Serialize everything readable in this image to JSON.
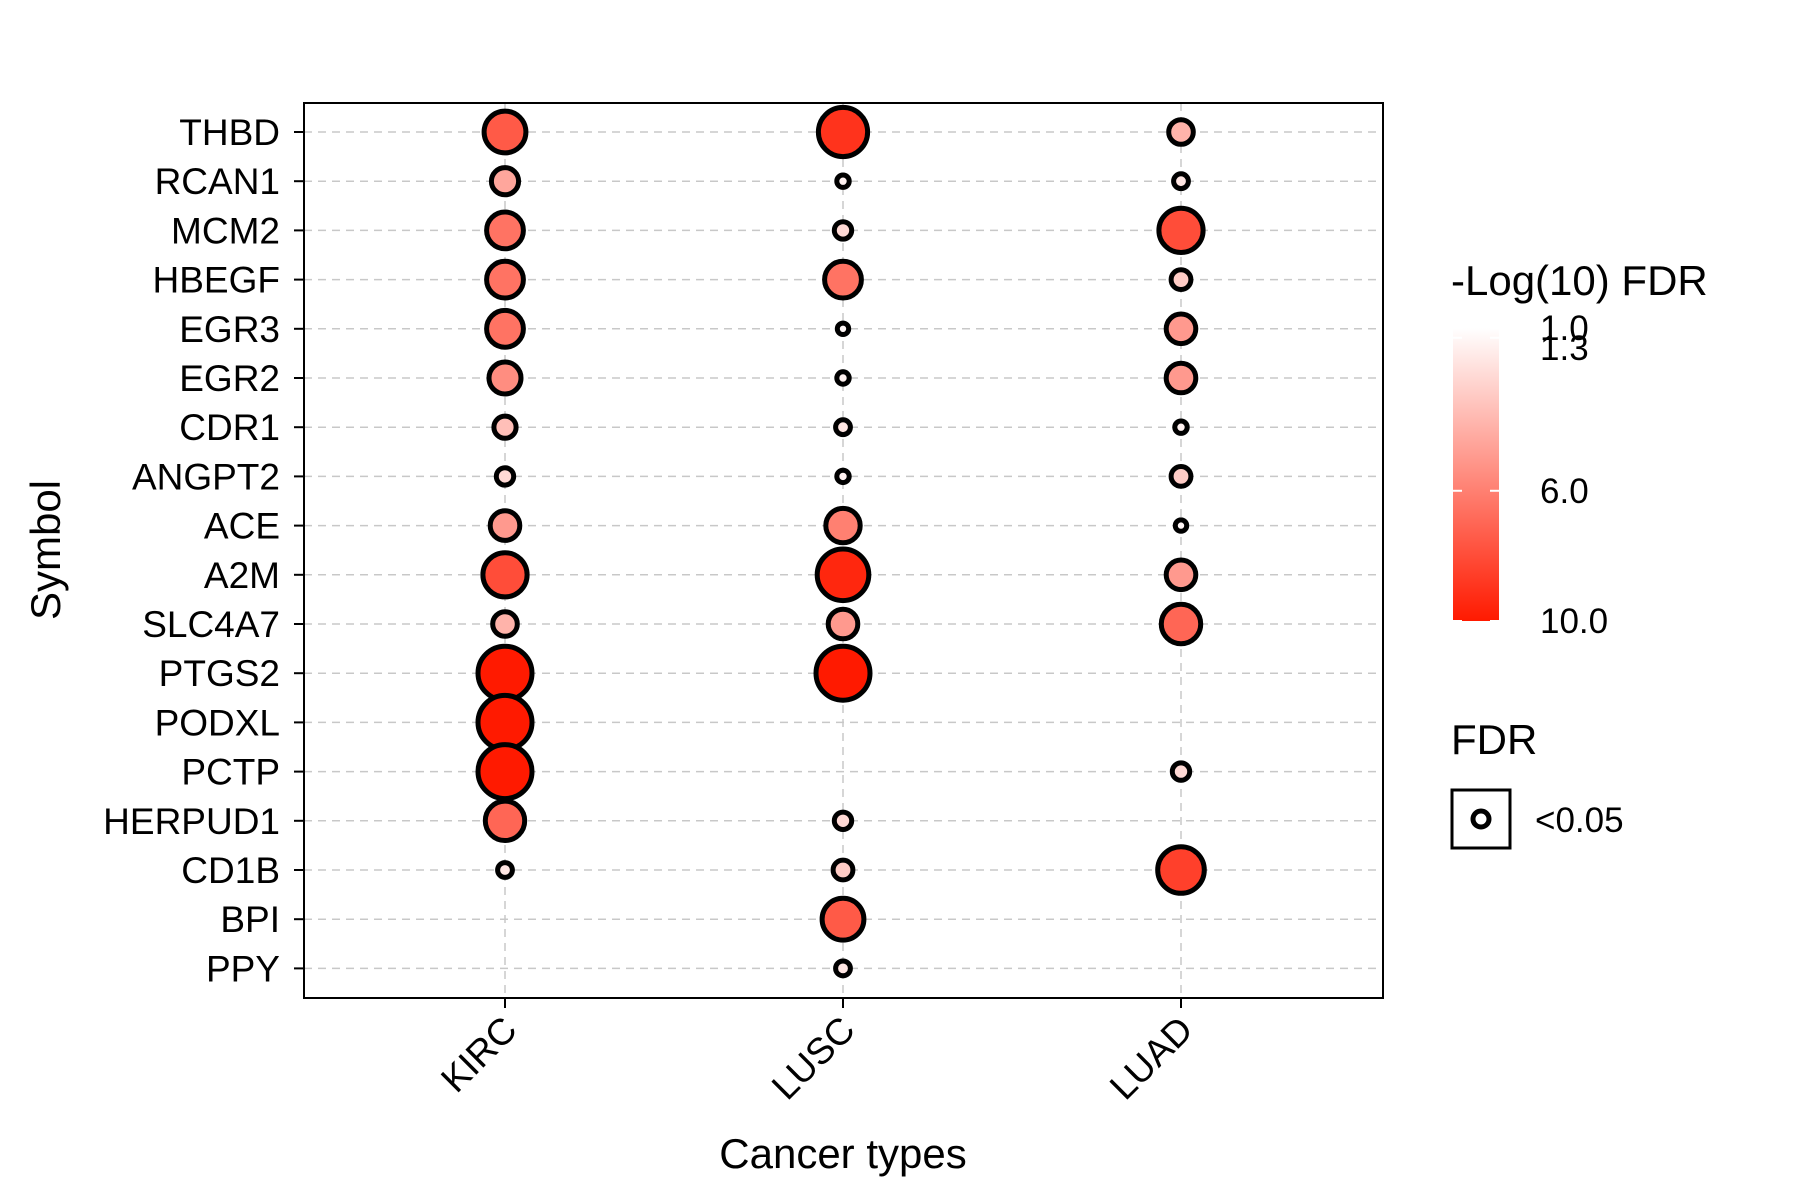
{
  "chart_data": {
    "type": "bubble",
    "xlabel": "Cancer types",
    "ylabel": "Symbol",
    "categories_x": [
      "KIRC",
      "LUSC",
      "LUAD"
    ],
    "categories_y": [
      "THBD",
      "RCAN1",
      "MCM2",
      "HBEGF",
      "EGR3",
      "EGR2",
      "CDR1",
      "ANGPT2",
      "ACE",
      "A2M",
      "SLC4A7",
      "PTGS2",
      "PODXL",
      "PCTP",
      "HERPUD1",
      "CD1B",
      "BPI",
      "PPY"
    ],
    "grid": true,
    "color_legend": {
      "title": "-Log(10) FDR",
      "labels": [
        "1.0",
        "1.3",
        "6.0",
        "10.0"
      ],
      "low_color": "#ffffff",
      "high_color": "#ff1a00"
    },
    "size_legend": {
      "title": "FDR",
      "labels": [
        "<0.05"
      ]
    },
    "series": [
      {
        "x": "KIRC",
        "values": [
          7.5,
          4.5,
          6.5,
          6.5,
          6.5,
          5.5,
          3.5,
          2.5,
          5.0,
          8.0,
          4.0,
          10.0,
          10.0,
          10.0,
          7.0,
          2.0,
          null,
          null
        ]
      },
      {
        "x": "LUSC",
        "values": [
          9.0,
          1.5,
          2.5,
          6.5,
          1.3,
          1.5,
          2.0,
          1.5,
          6.0,
          9.5,
          5.0,
          10.0,
          null,
          null,
          2.5,
          3.0,
          7.5,
          2.0
        ]
      },
      {
        "x": "LUAD",
        "values": [
          4.0,
          2.0,
          8.0,
          3.0,
          5.0,
          5.0,
          1.5,
          3.0,
          1.3,
          5.0,
          7.0,
          null,
          null,
          2.5,
          null,
          8.5,
          null,
          null
        ]
      }
    ]
  }
}
